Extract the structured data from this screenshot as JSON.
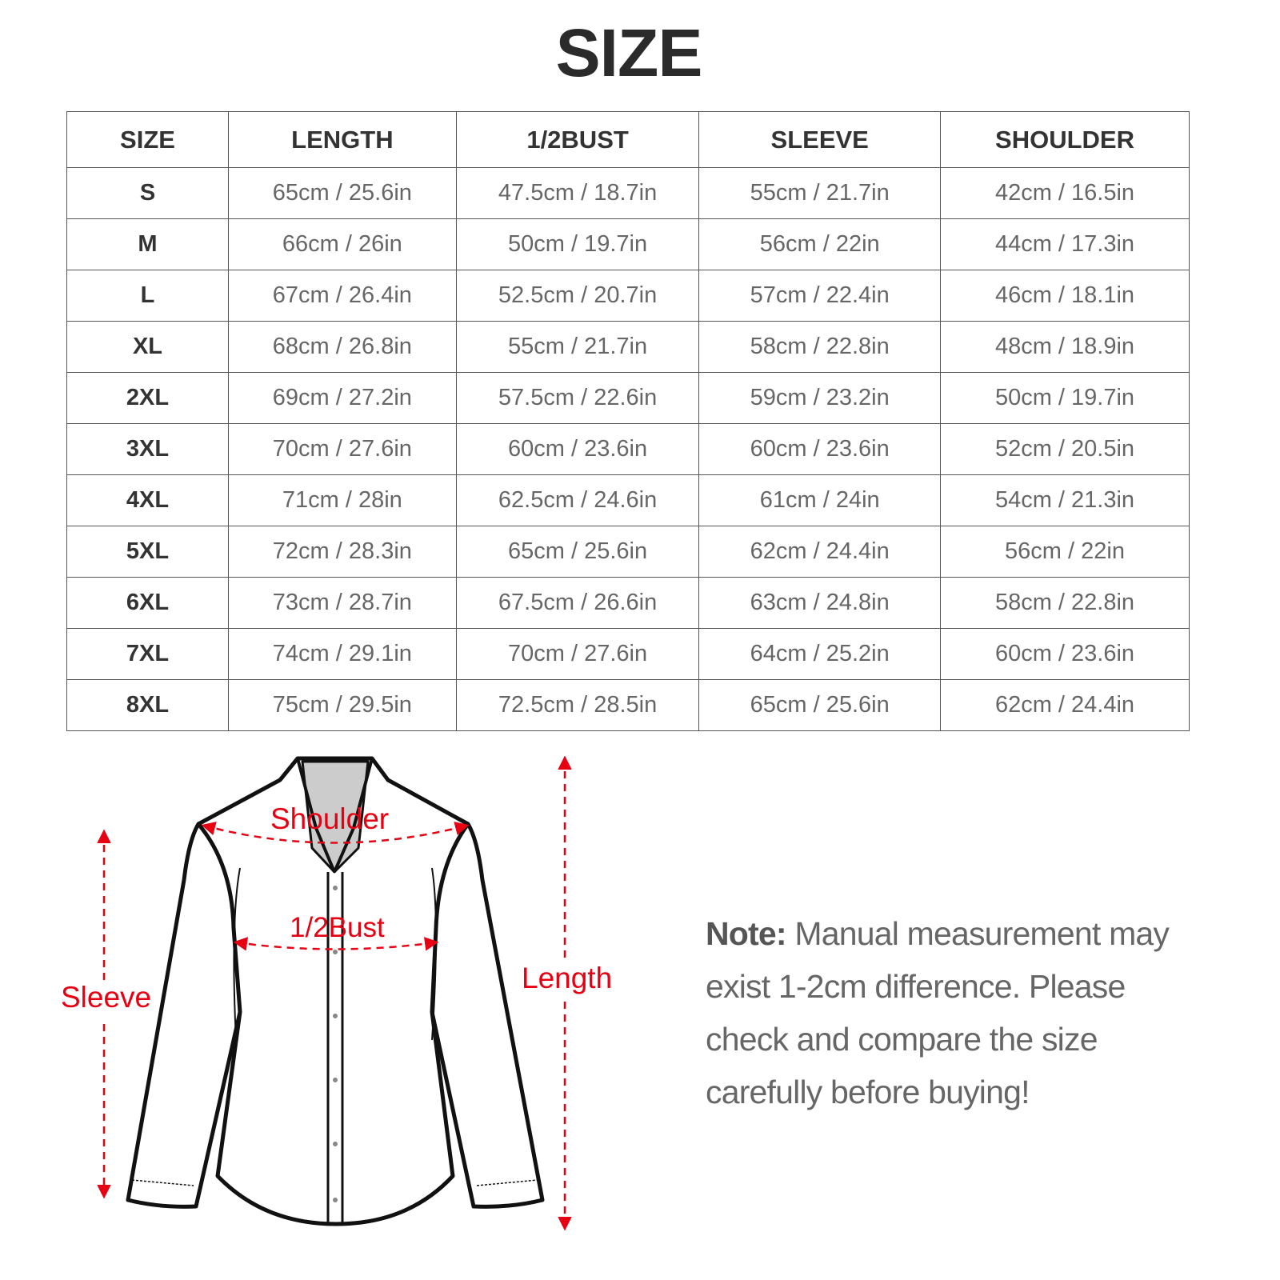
{
  "title": "SIZE",
  "table": {
    "headers": [
      "SIZE",
      "LENGTH",
      "1/2BUST",
      "SLEEVE",
      "SHOULDER"
    ],
    "rows": [
      [
        "S",
        "65cm / 25.6in",
        "47.5cm / 18.7in",
        "55cm / 21.7in",
        "42cm / 16.5in"
      ],
      [
        "M",
        "66cm / 26in",
        "50cm / 19.7in",
        "56cm / 22in",
        "44cm / 17.3in"
      ],
      [
        "L",
        "67cm / 26.4in",
        "52.5cm / 20.7in",
        "57cm / 22.4in",
        "46cm / 18.1in"
      ],
      [
        "XL",
        "68cm / 26.8in",
        "55cm / 21.7in",
        "58cm / 22.8in",
        "48cm / 18.9in"
      ],
      [
        "2XL",
        "69cm / 27.2in",
        "57.5cm / 22.6in",
        "59cm / 23.2in",
        "50cm / 19.7in"
      ],
      [
        "3XL",
        "70cm / 27.6in",
        "60cm / 23.6in",
        "60cm / 23.6in",
        "52cm / 20.5in"
      ],
      [
        "4XL",
        "71cm / 28in",
        "62.5cm / 24.6in",
        "61cm / 24in",
        "54cm / 21.3in"
      ],
      [
        "5XL",
        "72cm / 28.3in",
        "65cm / 25.6in",
        "62cm / 24.4in",
        "56cm / 22in"
      ],
      [
        "6XL",
        "73cm / 28.7in",
        "67.5cm / 26.6in",
        "63cm / 24.8in",
        "58cm / 22.8in"
      ],
      [
        "7XL",
        "74cm / 29.1in",
        "70cm / 27.6in",
        "64cm / 25.2in",
        "60cm / 23.6in"
      ],
      [
        "8XL",
        "75cm / 29.5in",
        "72.5cm / 28.5in",
        "65cm / 25.6in",
        "62cm / 24.4in"
      ]
    ]
  },
  "diagram": {
    "labels": {
      "shoulder": "Shoulder",
      "bust": "1/2Bust",
      "sleeve": "Sleeve",
      "length": "Length"
    },
    "accent_color": "#e60012",
    "icon": "shirt-outline"
  },
  "note": {
    "label": "Note:",
    "text": " Manual measurement may exist 1-2cm difference. Please check and compare the size carefully before buying!"
  }
}
